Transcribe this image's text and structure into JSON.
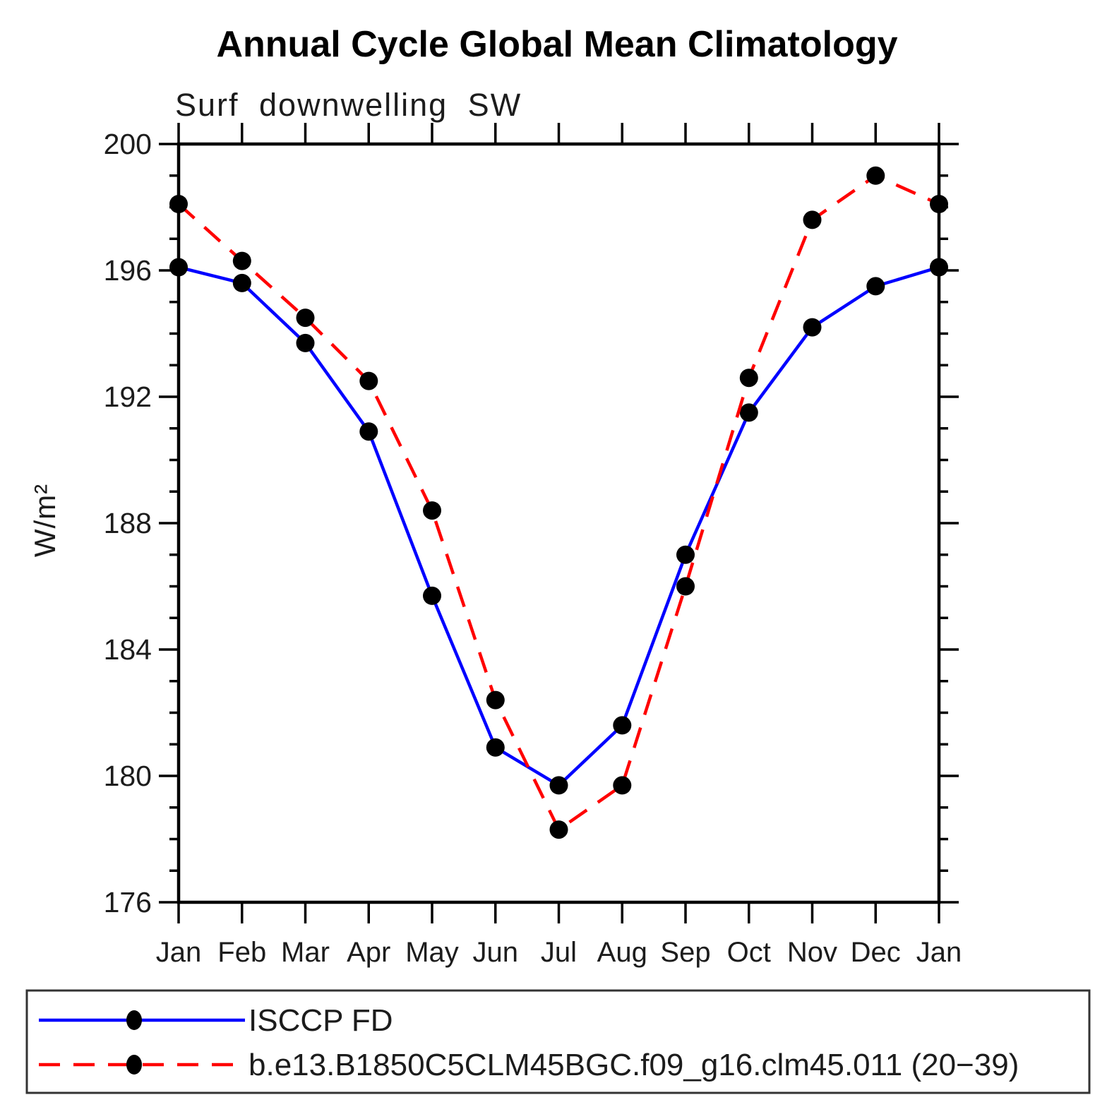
{
  "chart_data": {
    "type": "line",
    "title": "Annual Cycle Global Mean Climatology",
    "subtitle": "Surf downwelling SW",
    "ylabel": "W/m²",
    "xlabel": "",
    "x_categories": [
      "Jan",
      "Feb",
      "Mar",
      "Apr",
      "May",
      "Jun",
      "Jul",
      "Aug",
      "Sep",
      "Oct",
      "Nov",
      "Dec",
      "Jan"
    ],
    "ylim": [
      176,
      200
    ],
    "y_major_step": 4,
    "y_minor_step": 1,
    "y_major_ticks": [
      200,
      196,
      192,
      188,
      184,
      180,
      176
    ],
    "grid": false,
    "tick_direction": "outward",
    "frame_color": "#000000",
    "legend_position": "bottom-left-box",
    "legend_border_color": "#333333",
    "marker": "filled-circle",
    "marker_color": "#000000",
    "series": [
      {
        "name": "ISCCP FD",
        "color": "#0000ff",
        "line_style": "solid",
        "values": [
          196.1,
          195.6,
          193.7,
          190.9,
          185.7,
          180.9,
          179.7,
          181.6,
          187.0,
          191.5,
          194.2,
          195.5,
          196.1
        ]
      },
      {
        "name": "b.e13.B1850C5CLM45BGC.f09_g16.clm45.011 (20−39)",
        "color": "#ff0000",
        "line_style": "dashed",
        "values": [
          198.1,
          196.3,
          194.5,
          192.5,
          188.4,
          182.4,
          178.3,
          179.7,
          186.0,
          192.6,
          197.6,
          199.0,
          198.1
        ]
      }
    ]
  }
}
